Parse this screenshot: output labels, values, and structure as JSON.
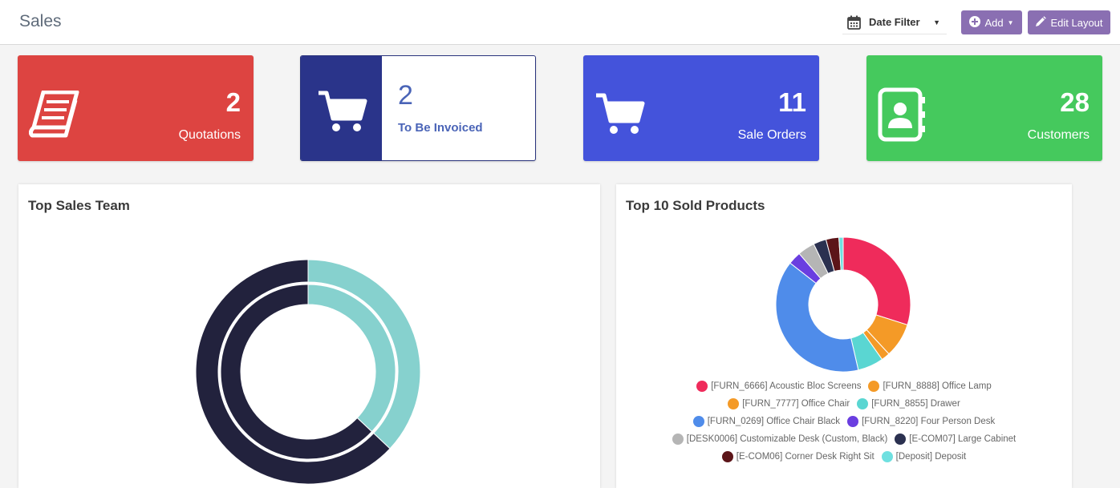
{
  "header": {
    "title": "Sales",
    "date_filter_label": "Date Filter",
    "add_label": "Add",
    "edit_layout_label": "Edit Layout"
  },
  "kpis": [
    {
      "value": "2",
      "label": "Quotations",
      "color": "#dd4441",
      "icon": "book-icon"
    },
    {
      "value": "2",
      "label": "To Be Invoiced",
      "color": "#2a348a",
      "icon": "cart-icon"
    },
    {
      "value": "11",
      "label": "Sale Orders",
      "color": "#4453db",
      "icon": "cart-icon"
    },
    {
      "value": "28",
      "label": "Customers",
      "color": "#45c95d",
      "icon": "contact-book-icon"
    }
  ],
  "panels": {
    "sales_team_title": "Top Sales Team",
    "products_title": "Top 10 Sold Products"
  },
  "chart_data": [
    {
      "type": "pie",
      "variant": "double-donut",
      "title": "Top Sales Team",
      "series": [
        {
          "values": [
            37,
            63
          ],
          "colors": [
            "#86d1ce",
            "#22223d"
          ]
        },
        {
          "values": [
            37,
            63
          ],
          "colors": [
            "#86d1ce",
            "#22223d"
          ]
        }
      ]
    },
    {
      "type": "pie",
      "variant": "donut",
      "title": "Top 10 Sold Products",
      "legend_position": "bottom",
      "categories": [
        "[FURN_6666] Acoustic Bloc Screens",
        "[FURN_8888] Office Lamp",
        "[FURN_7777] Office Chair",
        "[FURN_8855] Drawer",
        "[FURN_0269] Office Chair Black",
        "[FURN_8220] Four Person Desk",
        "[DESK0006] Customizable Desk (Custom, Black)",
        "[E-COM07] Large Cabinet",
        "[E-COM06] Corner Desk Right Sit",
        "[Deposit] Deposit"
      ],
      "values": [
        29,
        8,
        2,
        6,
        38,
        3,
        4,
        3,
        3,
        1
      ],
      "colors": [
        "#ef2b5b",
        "#f49a27",
        "#f49a27",
        "#5ad6d2",
        "#4f8cea",
        "#6a3ee0",
        "#b5b5b5",
        "#2b3150",
        "#5c1519",
        "#6fe0e0"
      ]
    }
  ]
}
